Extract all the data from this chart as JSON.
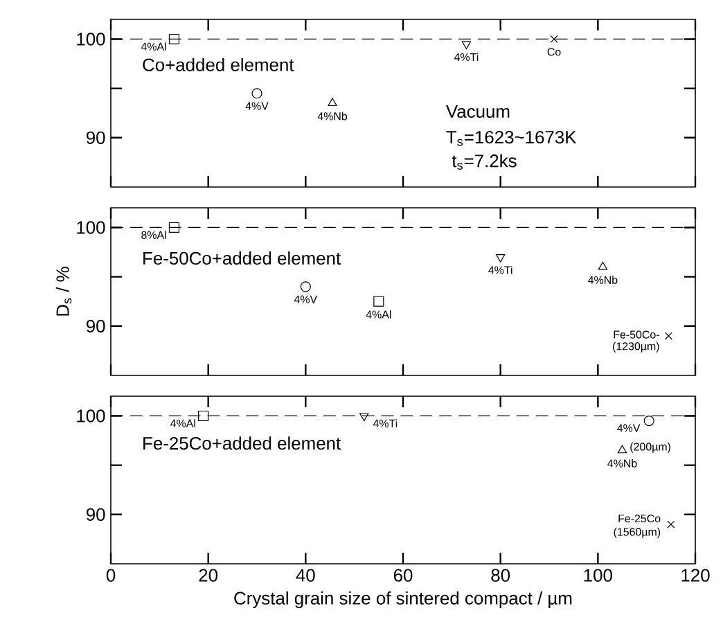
{
  "chart_data": [
    {
      "type": "scatter",
      "xlim": [
        0,
        120
      ],
      "ylim": [
        85,
        102
      ],
      "xticks": [
        0,
        20,
        40,
        60,
        80,
        100,
        120
      ],
      "yticks": [
        90,
        100
      ],
      "tick_labels": "y",
      "ref_lines": [
        {
          "axis": "y",
          "value": 100,
          "line_style": "dashed",
          "color": "#000000"
        }
      ],
      "series": [
        {
          "marker": "square",
          "color": "#000000",
          "x": [
            13
          ],
          "values": [
            100
          ]
        },
        {
          "marker": "circle",
          "color": "#000000",
          "x": [
            30
          ],
          "values": [
            94.5
          ]
        },
        {
          "marker": "triangle",
          "color": "#000000",
          "x": [
            45.5
          ],
          "values": [
            93.5
          ]
        },
        {
          "marker": "triangle_down",
          "color": "#000000",
          "x": [
            73
          ],
          "values": [
            99.5
          ]
        },
        {
          "marker": "cross",
          "color": "#000000",
          "x": [
            91
          ],
          "values": [
            100
          ]
        }
      ],
      "annotations": [
        "Co+added element",
        "Vacuum",
        "T$_{s}$=1623~1673K",
        "t$_{s}$=7.2ks",
        {
          "text": "4%Al",
          "x": 13,
          "y": 100
        },
        {
          "text": "4%V",
          "x": 30,
          "y": 94.5
        },
        {
          "text": "4%Nb",
          "x": 45.5,
          "y": 93.5
        },
        {
          "text": "4%Ti",
          "x": 73,
          "y": 99.5
        },
        {
          "text": "Co",
          "x": 91,
          "y": 100
        }
      ]
    },
    {
      "type": "scatter",
      "xlim": [
        0,
        120
      ],
      "ylim": [
        85,
        102
      ],
      "xticks": [
        0,
        20,
        40,
        60,
        80,
        100,
        120
      ],
      "yticks": [
        90,
        100
      ],
      "tick_labels": "y",
      "ylabel": "D$_{s}$ / %",
      "ref_lines": [
        {
          "axis": "y",
          "value": 100,
          "line_style": "dashed",
          "color": "#000000"
        }
      ],
      "series": [
        {
          "marker": "square",
          "color": "#000000",
          "x": [
            13,
            55
          ],
          "values": [
            100,
            92.5
          ]
        },
        {
          "marker": "circle",
          "color": "#000000",
          "x": [
            40
          ],
          "values": [
            94
          ]
        },
        {
          "marker": "triangle_down",
          "color": "#000000",
          "x": [
            80
          ],
          "values": [
            97
          ]
        },
        {
          "marker": "triangle",
          "color": "#000000",
          "x": [
            101
          ],
          "values": [
            96
          ]
        },
        {
          "marker": "cross",
          "color": "#000000",
          "x": [
            114.5
          ],
          "values": [
            89
          ]
        }
      ],
      "annotations": [
        "Fe-50Co+added element",
        {
          "text": "8%Al",
          "x": 13,
          "y": 100
        },
        {
          "text": "4%V",
          "x": 40,
          "y": 94
        },
        {
          "text": "4%Al",
          "x": 55,
          "y": 92.5
        },
        {
          "text": "4%Ti",
          "x": 80,
          "y": 97
        },
        {
          "text": "4%Nb",
          "x": 101,
          "y": 96
        },
        {
          "text": "Fe-50Co-",
          "x": 114.5,
          "y": 89
        },
        {
          "text": "(1230µm)",
          "x": 114.5,
          "y": 89
        }
      ]
    },
    {
      "type": "scatter",
      "xlim": [
        0,
        120
      ],
      "ylim": [
        85,
        102
      ],
      "xticks": [
        0,
        20,
        40,
        60,
        80,
        100,
        120
      ],
      "yticks": [
        90,
        100
      ],
      "xlabel": "Crystal grain size of sintered compact / µm",
      "ref_lines": [
        {
          "axis": "y",
          "value": 100,
          "line_style": "dashed",
          "color": "#000000"
        }
      ],
      "series": [
        {
          "marker": "square",
          "color": "#000000",
          "x": [
            19
          ],
          "values": [
            100
          ]
        },
        {
          "marker": "triangle_down",
          "color": "#000000",
          "x": [
            52
          ],
          "values": [
            100
          ]
        },
        {
          "marker": "circle",
          "color": "#000000",
          "x": [
            110.5
          ],
          "values": [
            99.5
          ]
        },
        {
          "marker": "triangle",
          "color": "#000000",
          "x": [
            105
          ],
          "values": [
            96.5
          ]
        },
        {
          "marker": "cross",
          "color": "#000000",
          "x": [
            115
          ],
          "values": [
            89
          ]
        }
      ],
      "annotations": [
        "Fe-25Co+added element",
        {
          "text": "4%Al",
          "x": 19,
          "y": 100
        },
        {
          "text": "4%Ti",
          "x": 52,
          "y": 100
        },
        {
          "text": "4%V",
          "x": 110.5,
          "y": 99.5
        },
        {
          "text": "(200µm)",
          "x": 105,
          "y": 96.5
        },
        {
          "text": "4%Nb",
          "x": 105,
          "y": 96.5
        },
        {
          "text": "Fe-25Co",
          "x": 115,
          "y": 89
        },
        {
          "text": "(1560µm)",
          "x": 115,
          "y": 89
        }
      ]
    }
  ]
}
